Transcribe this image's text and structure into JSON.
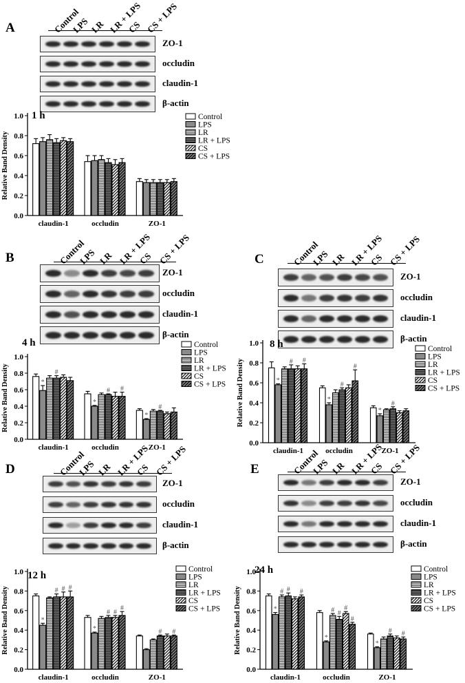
{
  "lanes": [
    "Control",
    "LPS",
    "LR",
    "LR + LPS",
    "CS",
    "CS + LPS"
  ],
  "blot_proteins": [
    "ZO-1",
    "occludin",
    "claudin-1",
    "β-actin"
  ],
  "ylabel": "Relative Band Density",
  "legend": [
    "Control",
    "LPS",
    "LR",
    "LR + LPS",
    "CS",
    "CS + LPS"
  ],
  "yticks": [
    "0.0",
    "0.2",
    "0.4",
    "0.6",
    "0.8",
    "1.0"
  ],
  "chart_data": [
    {
      "type": "bar",
      "panel": "A",
      "time": "1 h",
      "categories": [
        "claudin-1",
        "occludin",
        "ZO-1"
      ],
      "ylim": [
        0,
        1.0
      ],
      "series": [
        {
          "name": "Control",
          "values": [
            0.72,
            0.54,
            0.34
          ],
          "err": [
            0.05,
            0.06,
            0.03
          ]
        },
        {
          "name": "LPS",
          "values": [
            0.74,
            0.55,
            0.33
          ],
          "err": [
            0.04,
            0.05,
            0.03
          ]
        },
        {
          "name": "LR",
          "values": [
            0.76,
            0.56,
            0.33
          ],
          "err": [
            0.05,
            0.04,
            0.03
          ]
        },
        {
          "name": "LR + LPS",
          "values": [
            0.73,
            0.53,
            0.33
          ],
          "err": [
            0.04,
            0.04,
            0.03
          ]
        },
        {
          "name": "CS",
          "values": [
            0.75,
            0.51,
            0.33
          ],
          "err": [
            0.03,
            0.05,
            0.03
          ]
        },
        {
          "name": "CS + LPS",
          "values": [
            0.74,
            0.53,
            0.34
          ],
          "err": [
            0.03,
            0.04,
            0.03
          ]
        }
      ],
      "marks": []
    },
    {
      "type": "bar",
      "panel": "B",
      "time": "4 h",
      "categories": [
        "claudin-1",
        "occludin",
        "ZO-1"
      ],
      "ylim": [
        0,
        1.0
      ],
      "series": [
        {
          "name": "Control",
          "values": [
            0.76,
            0.55,
            0.35
          ],
          "err": [
            0.03,
            0.03,
            0.02
          ]
        },
        {
          "name": "LPS",
          "values": [
            0.59,
            0.4,
            0.24
          ],
          "err": [
            0.06,
            0.01,
            0.01
          ]
        },
        {
          "name": "LR",
          "values": [
            0.74,
            0.54,
            0.34
          ],
          "err": [
            0.03,
            0.02,
            0.02
          ]
        },
        {
          "name": "LR + LPS",
          "values": [
            0.74,
            0.54,
            0.34
          ],
          "err": [
            0.03,
            0.01,
            0.01
          ]
        },
        {
          "name": "CS",
          "values": [
            0.75,
            0.52,
            0.31
          ],
          "err": [
            0.03,
            0.05,
            0.02
          ]
        },
        {
          "name": "CS + LPS",
          "values": [
            0.71,
            0.52,
            0.33
          ],
          "err": [
            0.04,
            0.05,
            0.05
          ]
        }
      ],
      "marks": [
        {
          "cat": 1,
          "ser": 1,
          "sym": "*"
        },
        {
          "cat": 0,
          "ser": 1,
          "sym": "*"
        },
        {
          "cat": 2,
          "ser": 1,
          "sym": "*"
        },
        {
          "cat": 0,
          "ser": 3,
          "sym": "#"
        },
        {
          "cat": 1,
          "ser": 3,
          "sym": "#"
        },
        {
          "cat": 1,
          "ser": 5,
          "sym": "#"
        },
        {
          "cat": 2,
          "ser": 3,
          "sym": "#"
        }
      ]
    },
    {
      "type": "bar",
      "panel": "C",
      "time": "8 h",
      "categories": [
        "claudin-1",
        "occludin",
        "ZO-1"
      ],
      "ylim": [
        0,
        1.0
      ],
      "series": [
        {
          "name": "Control",
          "values": [
            0.75,
            0.55,
            0.35
          ],
          "err": [
            0.06,
            0.02,
            0.02
          ]
        },
        {
          "name": "LPS",
          "values": [
            0.58,
            0.38,
            0.27
          ],
          "err": [
            0.01,
            0.02,
            0.02
          ]
        },
        {
          "name": "LR",
          "values": [
            0.74,
            0.5,
            0.33
          ],
          "err": [
            0.02,
            0.03,
            0.01
          ]
        },
        {
          "name": "LR + LPS",
          "values": [
            0.74,
            0.53,
            0.34
          ],
          "err": [
            0.04,
            0.02,
            0.02
          ]
        },
        {
          "name": "CS",
          "values": [
            0.74,
            0.55,
            0.3
          ],
          "err": [
            0.03,
            0.03,
            0.02
          ]
        },
        {
          "name": "CS + LPS",
          "values": [
            0.74,
            0.62,
            0.32
          ],
          "err": [
            0.05,
            0.11,
            0.02
          ]
        }
      ],
      "marks": [
        {
          "cat": 0,
          "ser": 1,
          "sym": "*"
        },
        {
          "cat": 1,
          "ser": 1,
          "sym": "*"
        },
        {
          "cat": 2,
          "ser": 1,
          "sym": "*"
        },
        {
          "cat": 0,
          "ser": 3,
          "sym": "#"
        },
        {
          "cat": 0,
          "ser": 5,
          "sym": "#"
        },
        {
          "cat": 1,
          "ser": 3,
          "sym": "#"
        },
        {
          "cat": 1,
          "ser": 5,
          "sym": "#"
        },
        {
          "cat": 2,
          "ser": 3,
          "sym": "#"
        }
      ]
    },
    {
      "type": "bar",
      "panel": "D",
      "time": "12 h",
      "categories": [
        "claudin-1",
        "occludin",
        "ZO-1"
      ],
      "ylim": [
        0,
        1.0
      ],
      "series": [
        {
          "name": "Control",
          "values": [
            0.75,
            0.53,
            0.34
          ],
          "err": [
            0.02,
            0.02,
            0.01
          ]
        },
        {
          "name": "LPS",
          "values": [
            0.45,
            0.37,
            0.2
          ],
          "err": [
            0.02,
            0.01,
            0.01
          ]
        },
        {
          "name": "LR",
          "values": [
            0.73,
            0.52,
            0.3
          ],
          "err": [
            0.01,
            0.02,
            0.01
          ]
        },
        {
          "name": "LR + LPS",
          "values": [
            0.74,
            0.53,
            0.34
          ],
          "err": [
            0.03,
            0.02,
            0.01
          ]
        },
        {
          "name": "CS",
          "values": [
            0.74,
            0.53,
            0.34
          ],
          "err": [
            0.05,
            0.02,
            0.02
          ]
        },
        {
          "name": "CS + LPS",
          "values": [
            0.74,
            0.55,
            0.34
          ],
          "err": [
            0.06,
            0.04,
            0.01
          ]
        }
      ],
      "marks": [
        {
          "cat": 0,
          "ser": 1,
          "sym": "*"
        },
        {
          "cat": 1,
          "ser": 1,
          "sym": "*"
        },
        {
          "cat": 0,
          "ser": 3,
          "sym": "#"
        },
        {
          "cat": 0,
          "ser": 4,
          "sym": "#"
        },
        {
          "cat": 0,
          "ser": 5,
          "sym": "#"
        },
        {
          "cat": 1,
          "ser": 3,
          "sym": "#"
        },
        {
          "cat": 1,
          "ser": 4,
          "sym": "#"
        },
        {
          "cat": 1,
          "ser": 5,
          "sym": "#"
        },
        {
          "cat": 2,
          "ser": 3,
          "sym": "#"
        },
        {
          "cat": 2,
          "ser": 5,
          "sym": "#"
        }
      ]
    },
    {
      "type": "bar",
      "panel": "E",
      "time": "24 h",
      "categories": [
        "claudin-1",
        "occludin",
        "ZO-1"
      ],
      "ylim": [
        0,
        1.0
      ],
      "series": [
        {
          "name": "Control",
          "values": [
            0.75,
            0.58,
            0.36
          ],
          "err": [
            0.02,
            0.02,
            0.01
          ]
        },
        {
          "name": "LPS",
          "values": [
            0.56,
            0.28,
            0.22
          ],
          "err": [
            0.02,
            0.01,
            0.01
          ]
        },
        {
          "name": "LR",
          "values": [
            0.74,
            0.55,
            0.31
          ],
          "err": [
            0.02,
            0.02,
            0.02
          ]
        },
        {
          "name": "LR + LPS",
          "values": [
            0.75,
            0.51,
            0.34
          ],
          "err": [
            0.03,
            0.03,
            0.02
          ]
        },
        {
          "name": "CS",
          "values": [
            0.72,
            0.57,
            0.32
          ],
          "err": [
            0.02,
            0.02,
            0.02
          ]
        },
        {
          "name": "CS + LPS",
          "values": [
            0.74,
            0.46,
            0.31
          ],
          "err": [
            0.02,
            0.02,
            0.02
          ]
        }
      ],
      "marks": [
        {
          "cat": 0,
          "ser": 1,
          "sym": "*"
        },
        {
          "cat": 1,
          "ser": 1,
          "sym": "*"
        },
        {
          "cat": 2,
          "ser": 1,
          "sym": "*"
        },
        {
          "cat": 0,
          "ser": 2,
          "sym": "#"
        },
        {
          "cat": 0,
          "ser": 3,
          "sym": "#"
        },
        {
          "cat": 0,
          "ser": 5,
          "sym": "#"
        },
        {
          "cat": 1,
          "ser": 2,
          "sym": "#"
        },
        {
          "cat": 1,
          "ser": 3,
          "sym": "#"
        },
        {
          "cat": 1,
          "ser": 4,
          "sym": "#"
        },
        {
          "cat": 1,
          "ser": 5,
          "sym": "#"
        },
        {
          "cat": 2,
          "ser": 3,
          "sym": "#"
        },
        {
          "cat": 2,
          "ser": 5,
          "sym": "#"
        }
      ]
    }
  ]
}
